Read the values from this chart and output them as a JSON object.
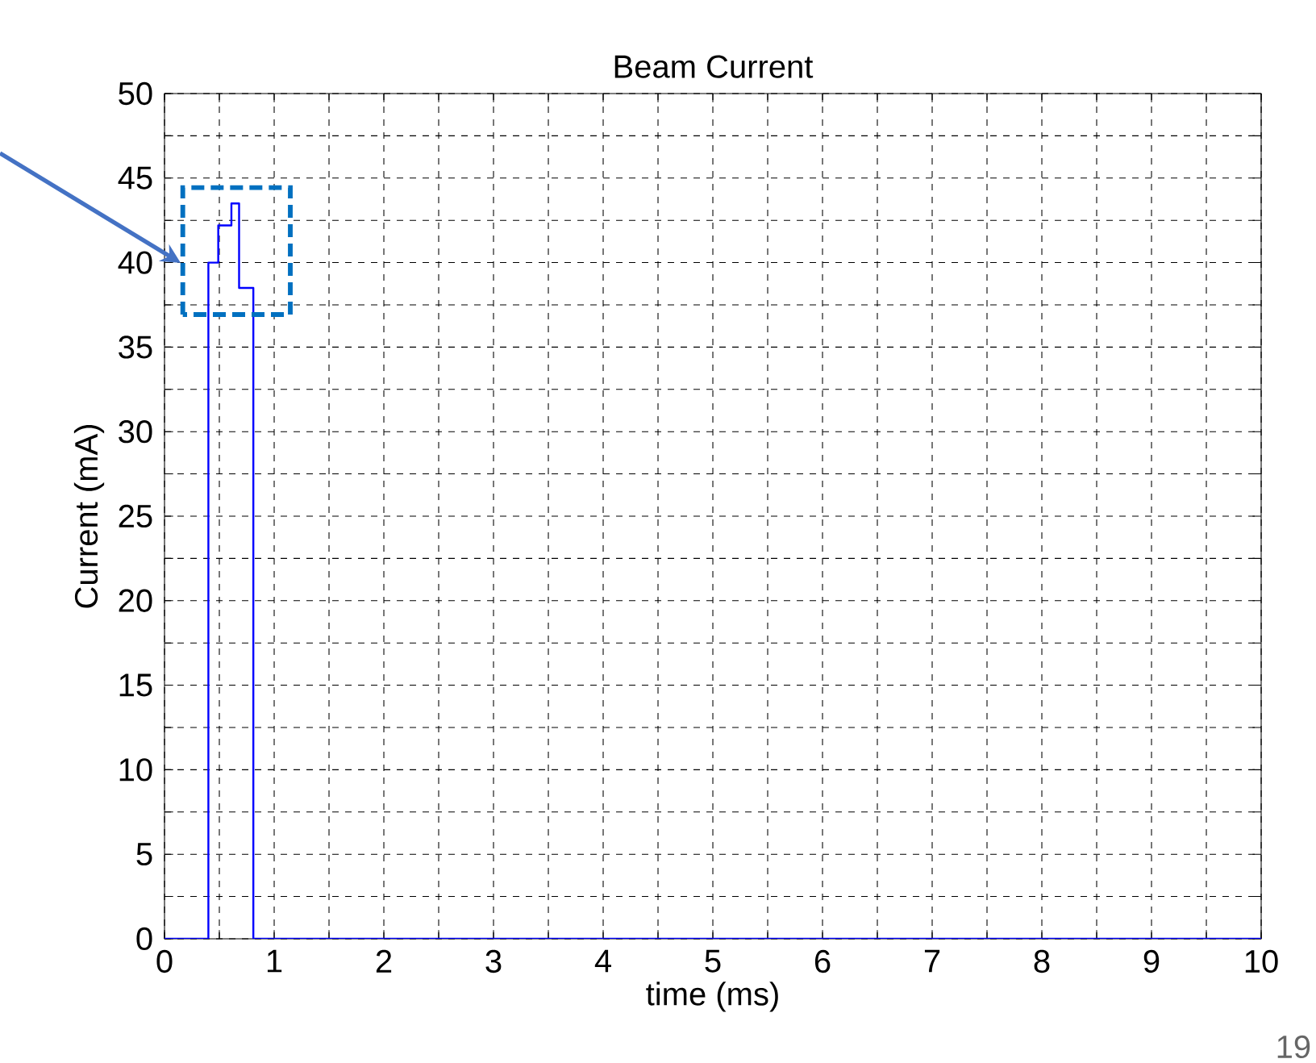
{
  "chart_data": {
    "type": "step",
    "title": "Beam Current",
    "xlabel": "time (ms)",
    "ylabel": "Current (mA)",
    "x": [
      0,
      0.4,
      0.49,
      0.61,
      0.68,
      0.81,
      10
    ],
    "series": [
      {
        "color": "#0000ff",
        "values": [
          0,
          40,
          42.2,
          43.5,
          38.5,
          0,
          0
        ]
      }
    ],
    "xlim": [
      0,
      10
    ],
    "ylim": [
      0,
      50
    ],
    "xticks": [
      0,
      {
        "value": 0.5,
        "label": null
      },
      1,
      {
        "value": 1.5,
        "label": null
      },
      2,
      {
        "value": 2.5,
        "label": null
      },
      3,
      {
        "value": 3.5,
        "label": null
      },
      4,
      {
        "value": 4.5,
        "label": null
      },
      5,
      {
        "value": 5.5,
        "label": null
      },
      6,
      {
        "value": 6.5,
        "label": null
      },
      7,
      {
        "value": 7.5,
        "label": null
      },
      8,
      {
        "value": 8.5,
        "label": null
      },
      9,
      {
        "value": 9.5,
        "label": null
      },
      10
    ],
    "yticks": [
      0,
      {
        "value": 2.5,
        "label": null
      },
      5,
      {
        "value": 7.5,
        "label": null
      },
      10,
      {
        "value": 12.5,
        "label": null
      },
      15,
      {
        "value": 17.5,
        "label": null
      },
      20,
      {
        "value": 22.5,
        "label": null
      },
      25,
      {
        "value": 27.5,
        "label": null
      },
      30,
      {
        "value": 32.5,
        "label": null
      },
      35,
      {
        "value": 37.5,
        "label": null
      },
      40,
      {
        "value": 42.5,
        "label": null
      },
      45,
      {
        "value": 47.5,
        "label": null
      },
      50
    ],
    "grid": true,
    "annotations": [
      "19"
    ]
  }
}
